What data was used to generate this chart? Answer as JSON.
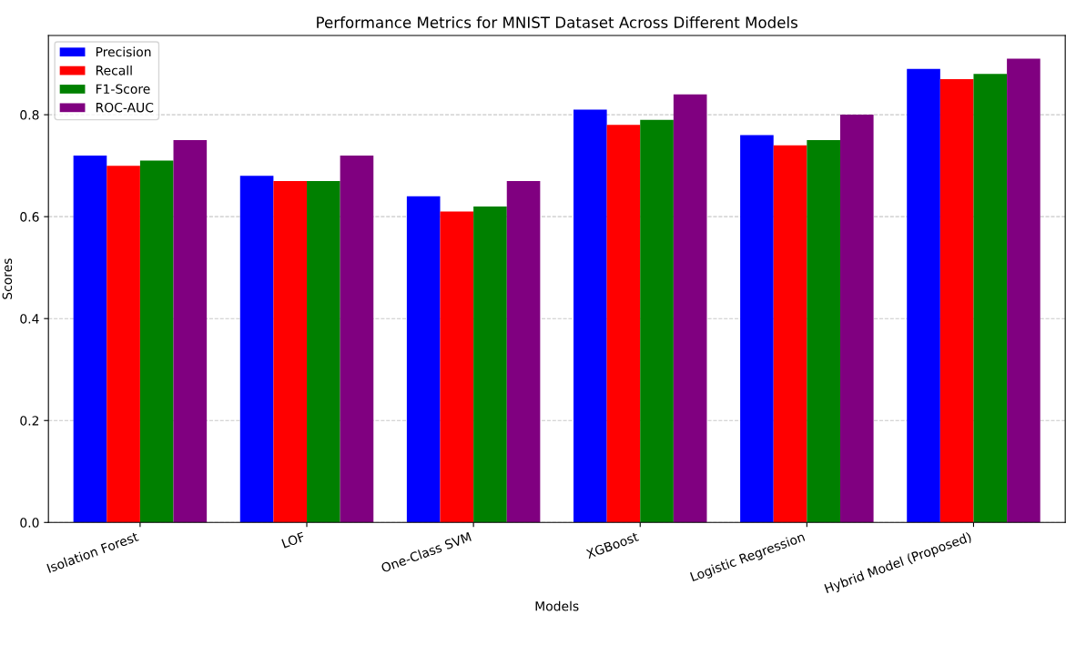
{
  "chart_data": {
    "type": "bar",
    "title": "Performance Metrics for MNIST Dataset Across Different Models",
    "xlabel": "Models",
    "ylabel": "Scores",
    "categories": [
      "Isolation Forest",
      "LOF",
      "One-Class SVM",
      "XGBoost",
      "Logistic Regression",
      "Hybrid Model (Proposed)"
    ],
    "series": [
      {
        "name": "Precision",
        "color": "#0000ff",
        "values": [
          0.72,
          0.68,
          0.64,
          0.81,
          0.76,
          0.89
        ]
      },
      {
        "name": "Recall",
        "color": "#ff0000",
        "values": [
          0.7,
          0.67,
          0.61,
          0.78,
          0.74,
          0.87
        ]
      },
      {
        "name": "F1-Score",
        "color": "#008000",
        "values": [
          0.71,
          0.67,
          0.62,
          0.79,
          0.75,
          0.88
        ]
      },
      {
        "name": "ROC-AUC",
        "color": "#800080",
        "values": [
          0.75,
          0.72,
          0.67,
          0.84,
          0.8,
          0.91
        ]
      }
    ],
    "ylim": [
      0,
      0.9555
    ],
    "yticks": [
      {
        "value": 0,
        "label": "0.0"
      },
      0.2,
      0.4,
      0.6,
      0.8
    ],
    "grid": "y",
    "legend": "top left"
  }
}
